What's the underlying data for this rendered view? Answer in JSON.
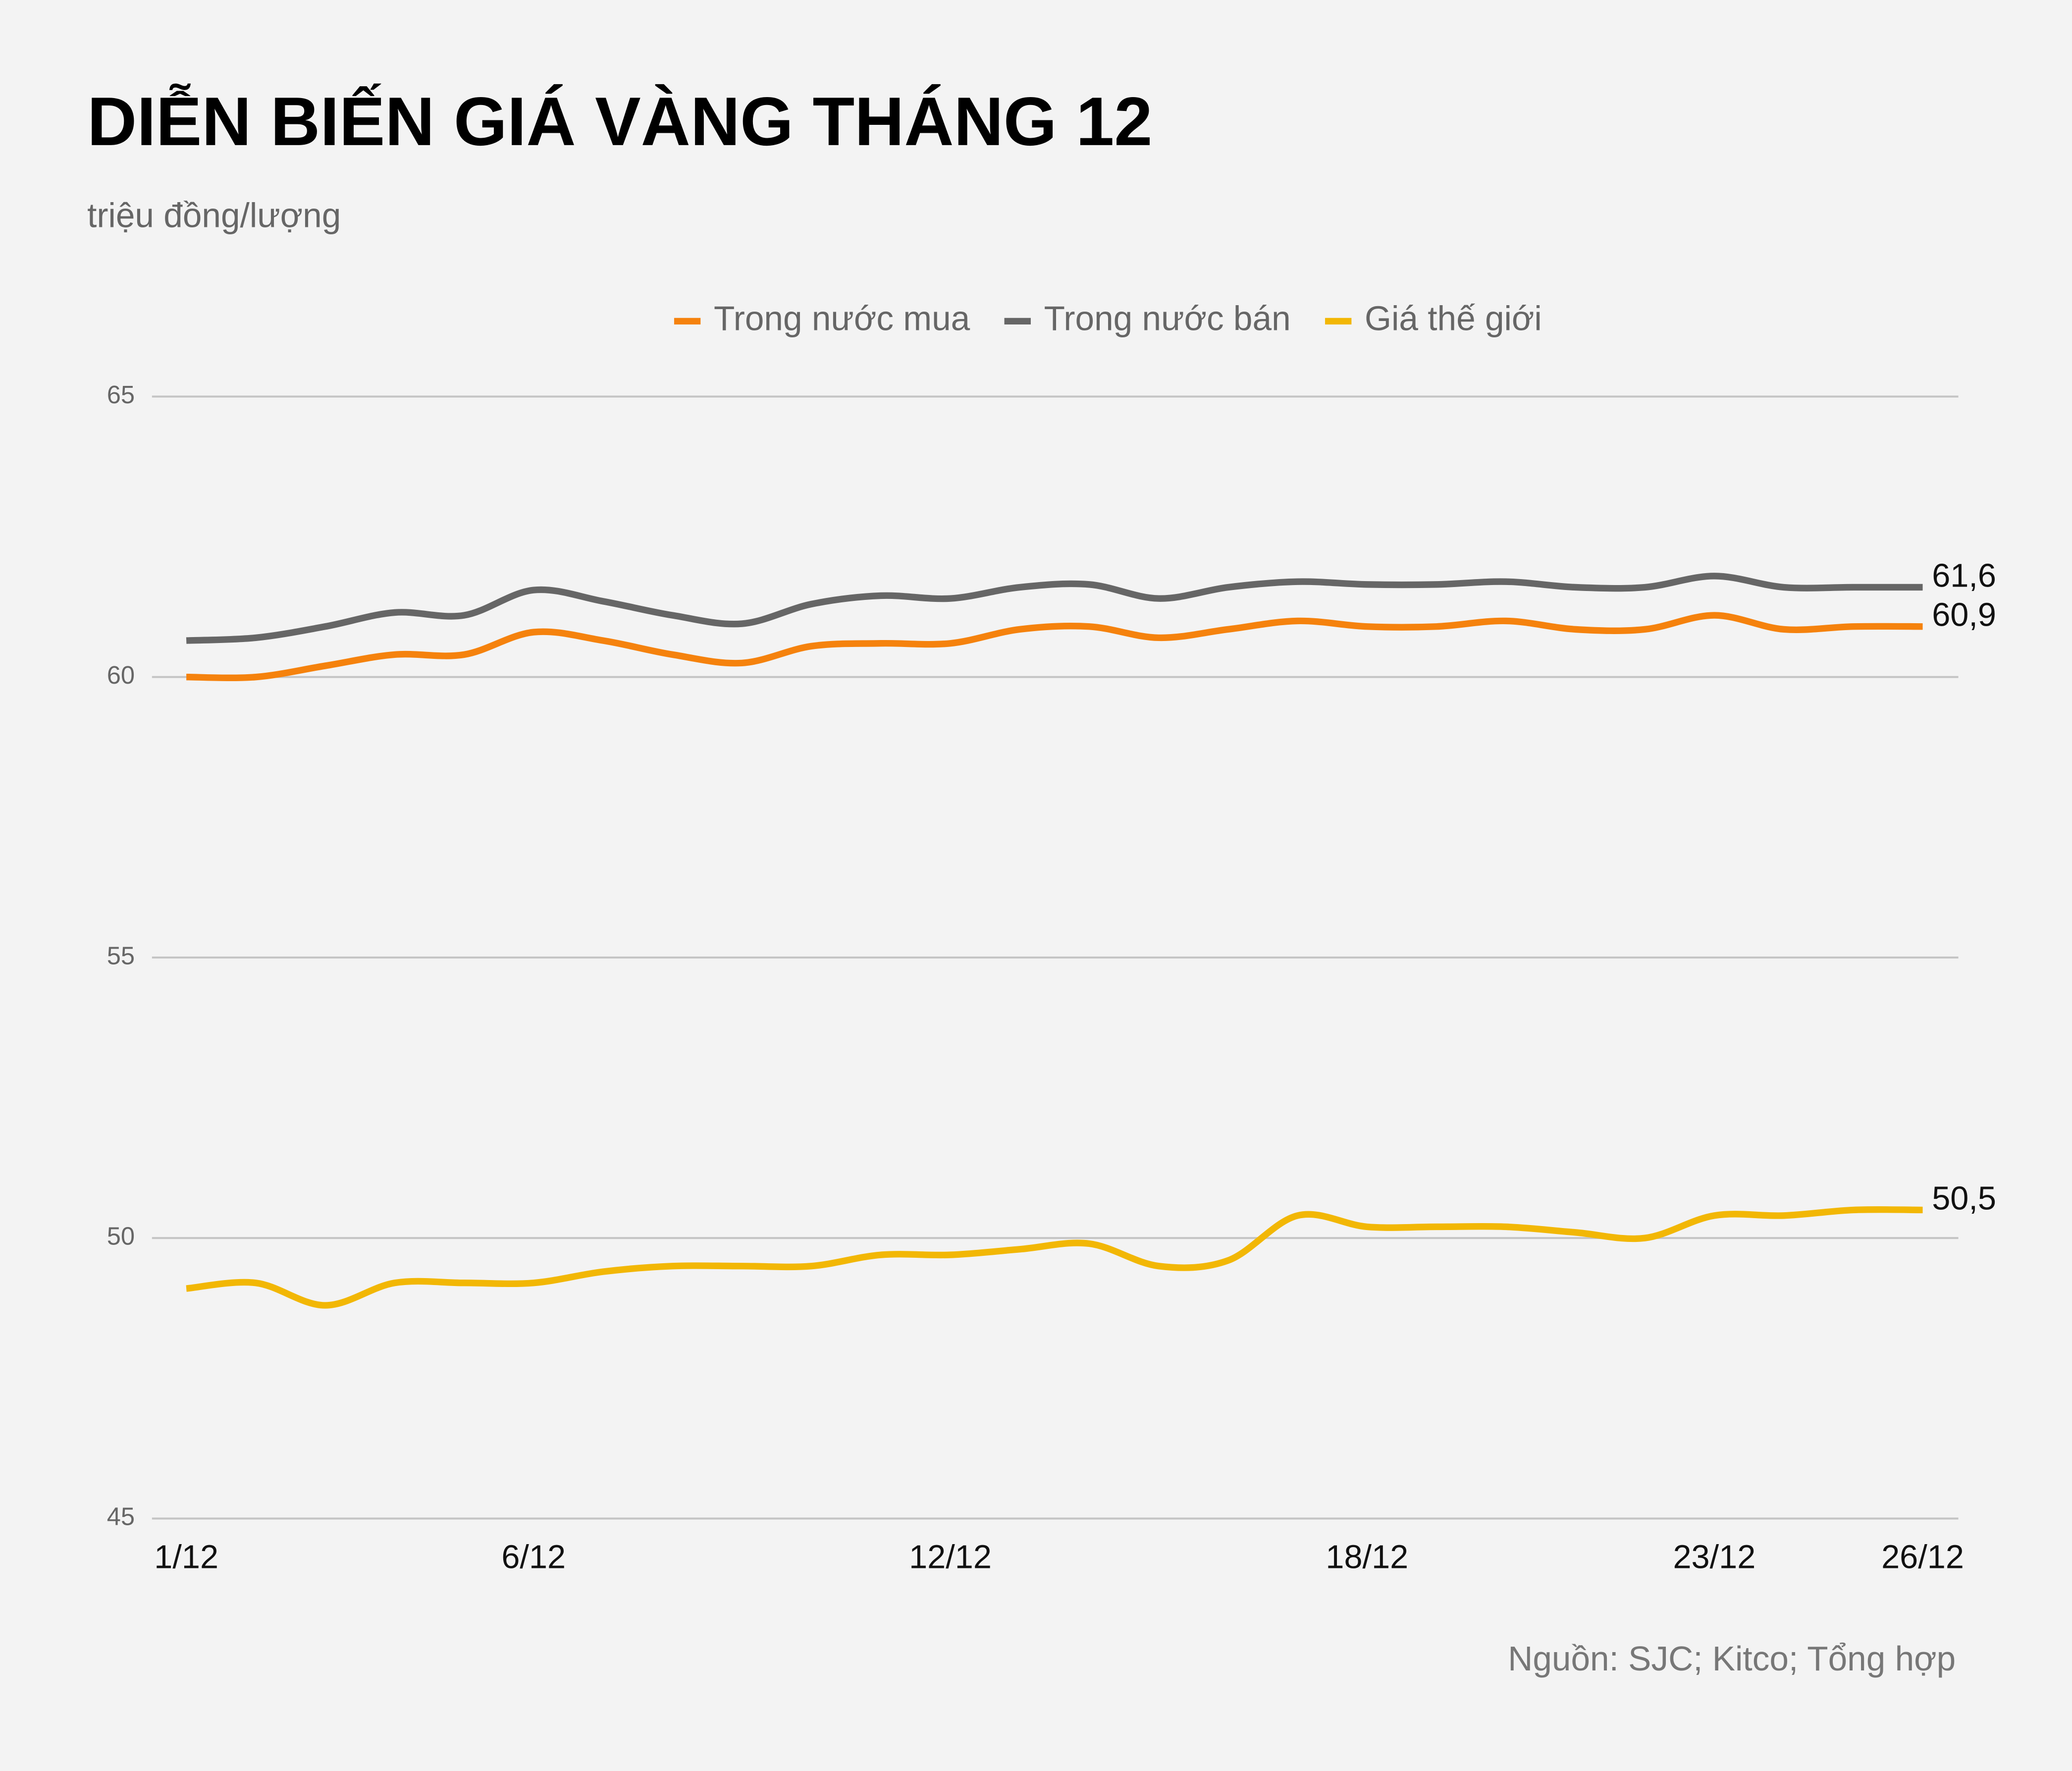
{
  "chart_data": {
    "type": "line",
    "title": "DIỄN BIẾN GIÁ VÀNG THÁNG 12",
    "subtitle": "triệu đồng/lượng",
    "source": "Nguồn: SJC; Kitco; Tổng hợp",
    "categories": [
      "1/12",
      null,
      null,
      null,
      null,
      "6/12",
      null,
      null,
      null,
      null,
      null,
      "12/12",
      null,
      null,
      null,
      null,
      null,
      "18/12",
      null,
      null,
      null,
      null,
      "23/12",
      null,
      null,
      "26/12"
    ],
    "series": [
      {
        "name": "Trong nước mua",
        "color": "#f5820d",
        "values": [
          60.0,
          60.0,
          60.2,
          60.4,
          60.4,
          60.8,
          60.65,
          60.4,
          60.25,
          60.55,
          60.6,
          60.6,
          60.85,
          60.9,
          60.7,
          60.85,
          61.0,
          60.9,
          60.9,
          61.0,
          60.85,
          60.85,
          61.1,
          60.85,
          60.9,
          60.9
        ],
        "value_labels": [
          null,
          null,
          null,
          null,
          null,
          null,
          null,
          null,
          null,
          null,
          null,
          null,
          null,
          null,
          null,
          null,
          null,
          null,
          null,
          null,
          null,
          null,
          null,
          null,
          null,
          "60,9"
        ]
      },
      {
        "name": "Trong nước bán",
        "color": "#666666",
        "values": [
          60.65,
          60.7,
          60.9,
          61.15,
          61.1,
          61.55,
          61.35,
          61.1,
          60.95,
          61.3,
          61.45,
          61.4,
          61.6,
          61.65,
          61.4,
          61.6,
          61.7,
          61.65,
          61.65,
          61.7,
          61.6,
          61.6,
          61.8,
          61.6,
          61.6,
          61.6
        ],
        "value_labels": [
          null,
          null,
          null,
          null,
          null,
          null,
          null,
          null,
          null,
          null,
          null,
          null,
          null,
          null,
          null,
          null,
          null,
          null,
          null,
          null,
          null,
          null,
          null,
          null,
          null,
          "61,6"
        ]
      },
      {
        "name": "Giá thế giới",
        "color": "#f2b705",
        "values": [
          49.1,
          49.2,
          48.8,
          49.2,
          49.2,
          49.2,
          49.4,
          49.5,
          49.5,
          49.5,
          49.7,
          49.7,
          49.8,
          49.9,
          49.5,
          49.6,
          50.4,
          50.2,
          50.2,
          50.2,
          50.1,
          50.0,
          50.4,
          50.4,
          50.5,
          50.5
        ],
        "value_labels": [
          null,
          null,
          null,
          null,
          null,
          null,
          null,
          null,
          null,
          null,
          null,
          null,
          null,
          null,
          null,
          null,
          null,
          null,
          null,
          null,
          null,
          null,
          null,
          null,
          null,
          "50,5"
        ]
      }
    ],
    "ylim": [
      45,
      65
    ],
    "yticks": [
      45,
      50,
      55,
      60,
      65
    ],
    "grid": true,
    "legend": "top"
  }
}
